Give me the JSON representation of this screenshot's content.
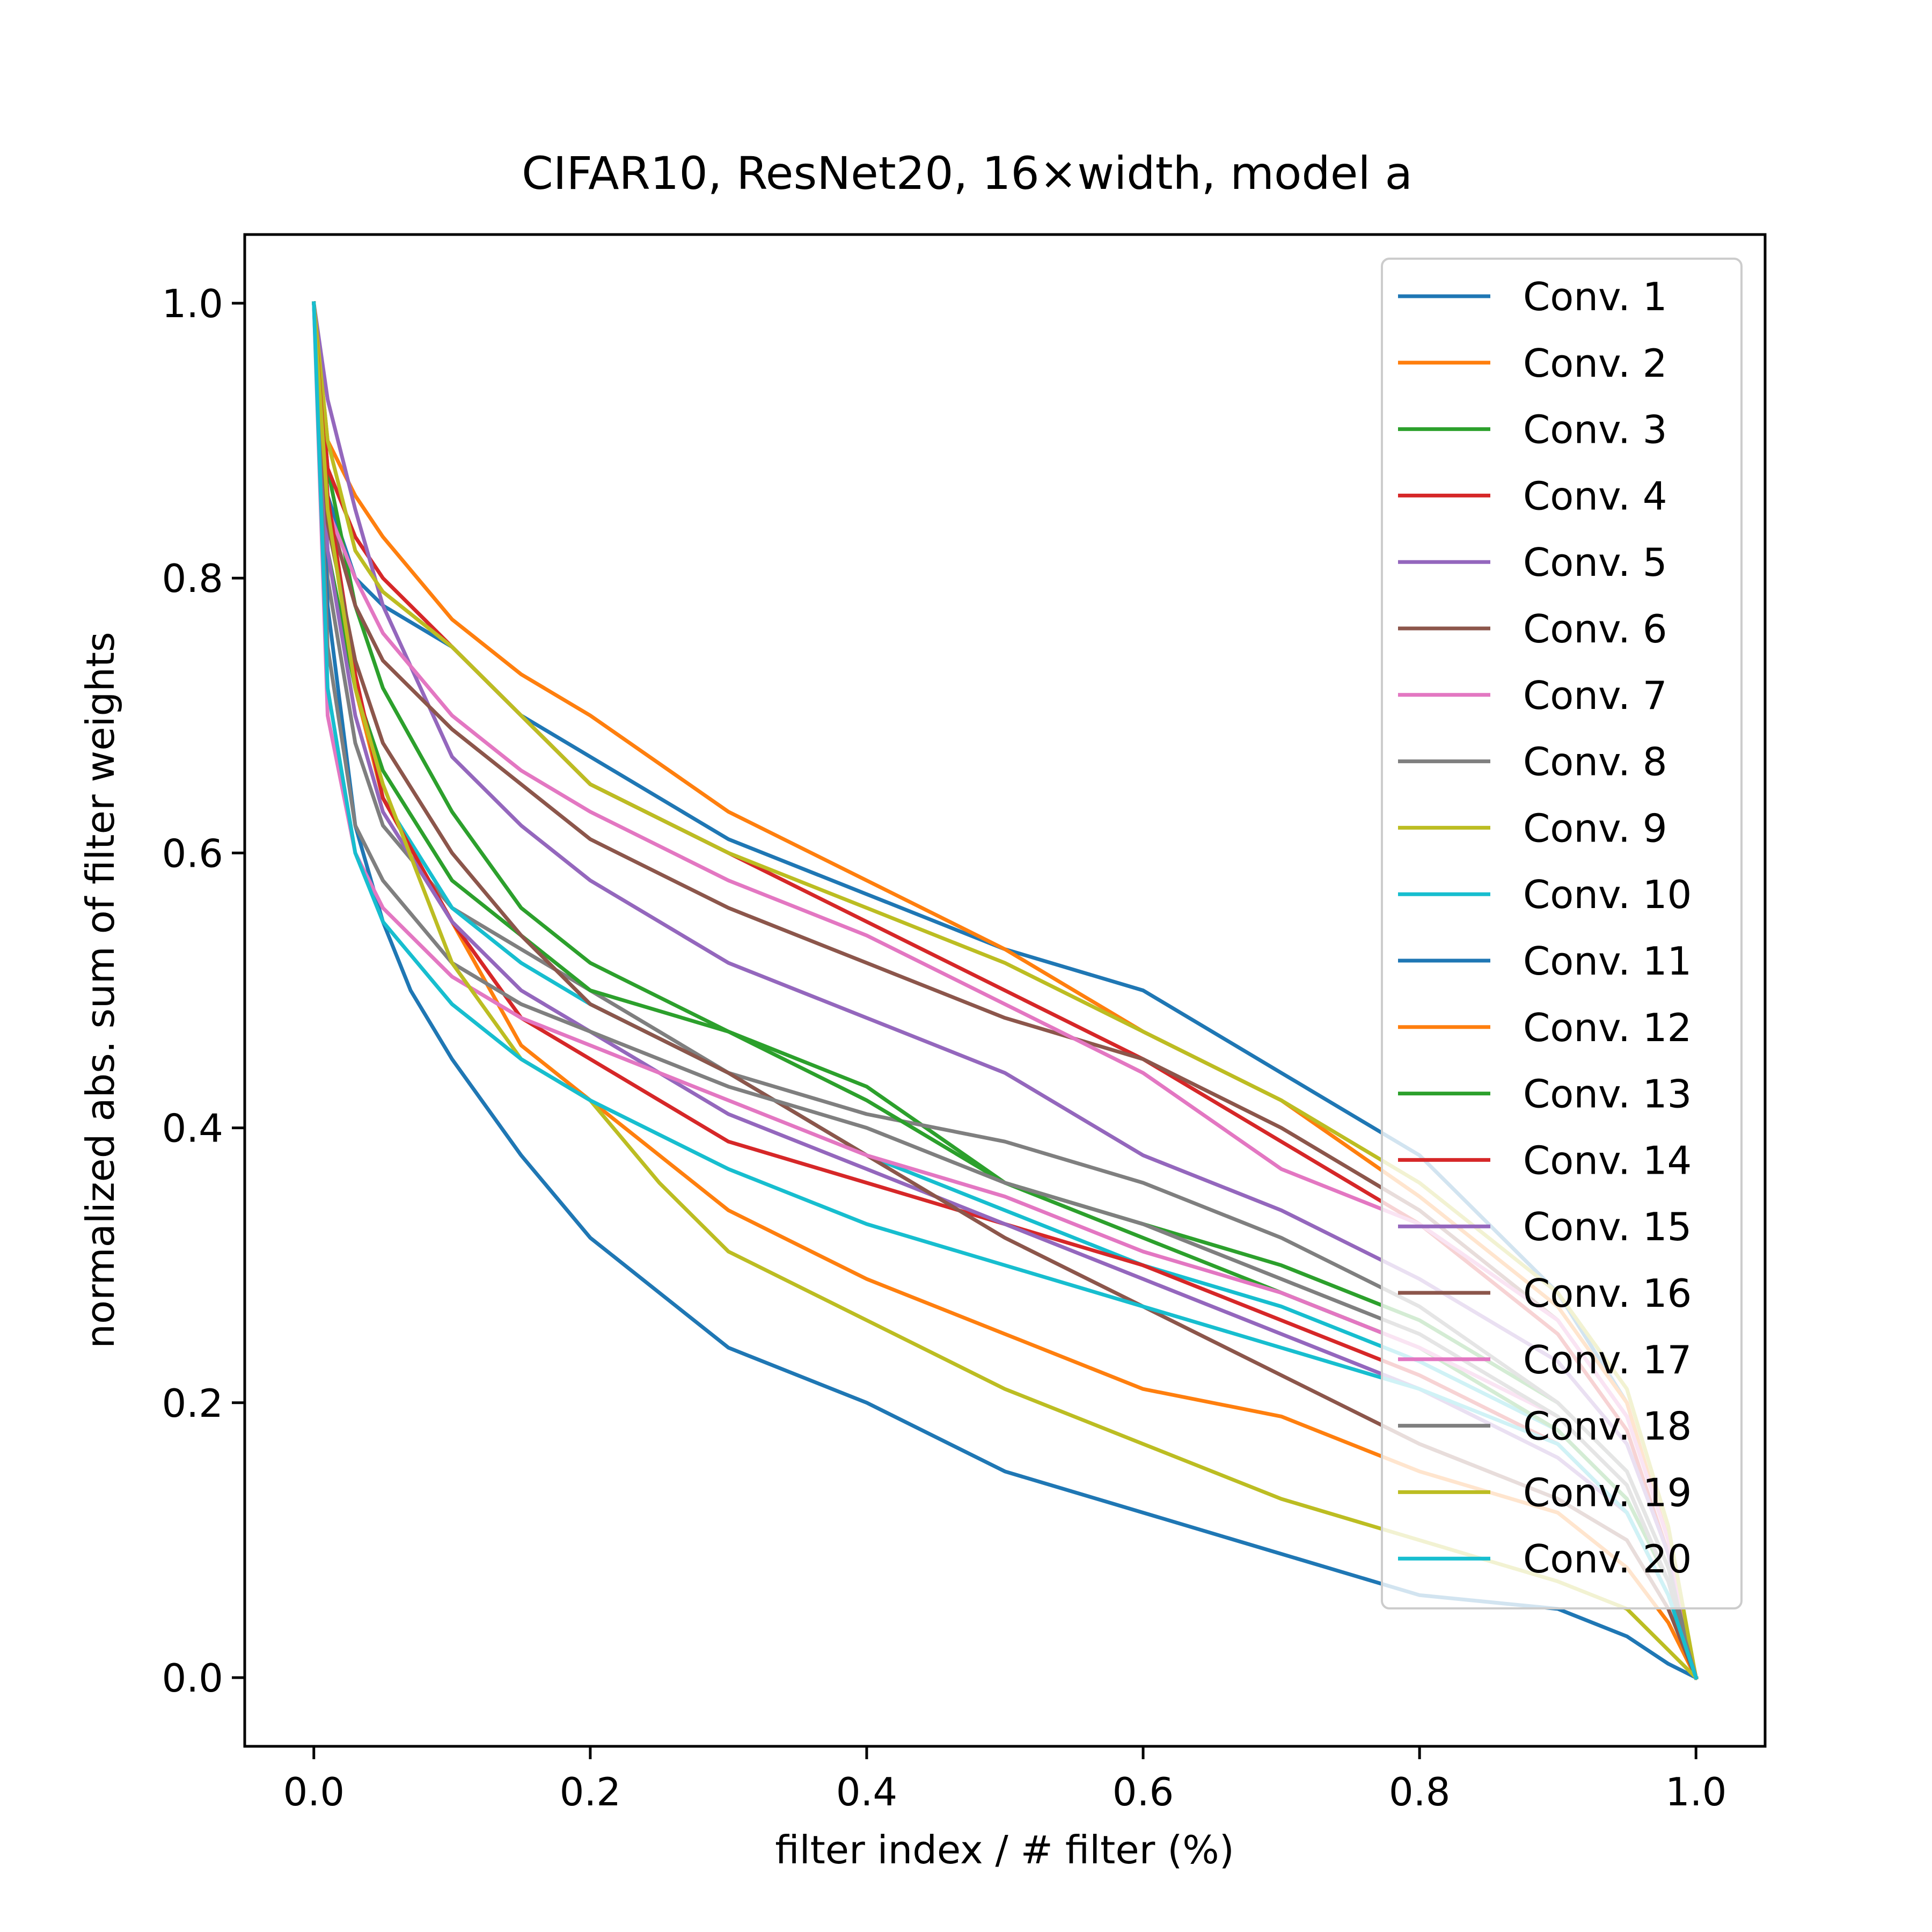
{
  "chart_data": {
    "type": "line",
    "title": "CIFAR10, ResNet20, 16×width, model a",
    "xlabel": "filter index / # filter (%)",
    "ylabel": "normalized abs. sum of filter weights",
    "xlim": [
      -0.05,
      1.05
    ],
    "ylim": [
      -0.05,
      1.05
    ],
    "xticks": [
      0.0,
      0.2,
      0.4,
      0.6,
      0.8,
      1.0
    ],
    "xtick_labels": [
      "0.0",
      "0.2",
      "0.4",
      "0.6",
      "0.8",
      "1.0"
    ],
    "yticks": [
      0.0,
      0.2,
      0.4,
      0.6,
      0.8,
      1.0
    ],
    "ytick_labels": [
      "0.0",
      "0.2",
      "0.4",
      "0.6",
      "0.8",
      "1.0"
    ],
    "grid": false,
    "legend_position": "upper right",
    "series": [
      {
        "name": "Conv. 1",
        "color": "#1f77b4",
        "x": [
          0,
          0.01,
          0.03,
          0.05,
          0.1,
          0.15,
          0.2,
          0.3,
          0.4,
          0.5,
          0.6,
          0.7,
          0.8,
          0.9,
          0.95,
          0.98,
          1.0
        ],
        "y": [
          1.0,
          0.86,
          0.8,
          0.78,
          0.75,
          0.7,
          0.67,
          0.61,
          0.57,
          0.53,
          0.5,
          0.44,
          0.38,
          0.28,
          0.2,
          0.1,
          0.0
        ]
      },
      {
        "name": "Conv. 2",
        "color": "#ff7f0e",
        "x": [
          0,
          0.01,
          0.03,
          0.05,
          0.1,
          0.15,
          0.2,
          0.3,
          0.4,
          0.5,
          0.6,
          0.7,
          0.8,
          0.9,
          0.95,
          0.98,
          1.0
        ],
        "y": [
          1.0,
          0.9,
          0.86,
          0.83,
          0.77,
          0.73,
          0.7,
          0.63,
          0.58,
          0.53,
          0.47,
          0.42,
          0.35,
          0.27,
          0.2,
          0.1,
          0.0
        ]
      },
      {
        "name": "Conv. 3",
        "color": "#2ca02c",
        "x": [
          0,
          0.01,
          0.03,
          0.05,
          0.1,
          0.15,
          0.2,
          0.3,
          0.4,
          0.5,
          0.6,
          0.7,
          0.8,
          0.9,
          0.95,
          0.98,
          1.0
        ],
        "y": [
          1.0,
          0.88,
          0.78,
          0.72,
          0.63,
          0.56,
          0.52,
          0.47,
          0.43,
          0.36,
          0.33,
          0.3,
          0.26,
          0.2,
          0.15,
          0.08,
          0.0
        ]
      },
      {
        "name": "Conv. 4",
        "color": "#d62728",
        "x": [
          0,
          0.01,
          0.03,
          0.05,
          0.1,
          0.15,
          0.2,
          0.3,
          0.4,
          0.5,
          0.6,
          0.7,
          0.8,
          0.9,
          0.95,
          0.98,
          1.0
        ],
        "y": [
          1.0,
          0.88,
          0.83,
          0.8,
          0.75,
          0.7,
          0.65,
          0.6,
          0.55,
          0.5,
          0.45,
          0.39,
          0.33,
          0.25,
          0.18,
          0.09,
          0.0
        ]
      },
      {
        "name": "Conv. 5",
        "color": "#9467bd",
        "x": [
          0,
          0.01,
          0.03,
          0.05,
          0.1,
          0.15,
          0.2,
          0.3,
          0.4,
          0.5,
          0.6,
          0.7,
          0.8,
          0.9,
          0.95,
          0.98,
          1.0
        ],
        "y": [
          1.0,
          0.93,
          0.85,
          0.78,
          0.67,
          0.62,
          0.58,
          0.52,
          0.48,
          0.44,
          0.38,
          0.34,
          0.29,
          0.23,
          0.17,
          0.09,
          0.0
        ]
      },
      {
        "name": "Conv. 6",
        "color": "#8c564b",
        "x": [
          0,
          0.01,
          0.03,
          0.05,
          0.1,
          0.15,
          0.2,
          0.3,
          0.4,
          0.5,
          0.6,
          0.7,
          0.8,
          0.9,
          0.95,
          0.98,
          1.0
        ],
        "y": [
          1.0,
          0.85,
          0.78,
          0.74,
          0.69,
          0.65,
          0.61,
          0.56,
          0.52,
          0.48,
          0.45,
          0.4,
          0.34,
          0.26,
          0.19,
          0.1,
          0.0
        ]
      },
      {
        "name": "Conv. 7",
        "color": "#e377c2",
        "x": [
          0,
          0.01,
          0.03,
          0.05,
          0.1,
          0.15,
          0.2,
          0.3,
          0.4,
          0.5,
          0.6,
          0.7,
          0.8,
          0.9,
          0.95,
          0.98,
          1.0
        ],
        "y": [
          1.0,
          0.85,
          0.8,
          0.76,
          0.7,
          0.66,
          0.63,
          0.58,
          0.54,
          0.49,
          0.44,
          0.37,
          0.33,
          0.26,
          0.19,
          0.1,
          0.0
        ]
      },
      {
        "name": "Conv. 8",
        "color": "#7f7f7f",
        "x": [
          0,
          0.01,
          0.03,
          0.05,
          0.1,
          0.15,
          0.2,
          0.3,
          0.4,
          0.5,
          0.6,
          0.7,
          0.8,
          0.9,
          0.95,
          0.98,
          1.0
        ],
        "y": [
          1.0,
          0.8,
          0.68,
          0.62,
          0.56,
          0.53,
          0.5,
          0.44,
          0.41,
          0.39,
          0.36,
          0.32,
          0.27,
          0.2,
          0.15,
          0.08,
          0.0
        ]
      },
      {
        "name": "Conv. 9",
        "color": "#bcbd22",
        "x": [
          0,
          0.01,
          0.03,
          0.05,
          0.1,
          0.15,
          0.2,
          0.3,
          0.4,
          0.5,
          0.6,
          0.7,
          0.8,
          0.9,
          0.95,
          0.98,
          1.0
        ],
        "y": [
          1.0,
          0.9,
          0.82,
          0.79,
          0.75,
          0.7,
          0.65,
          0.6,
          0.56,
          0.52,
          0.47,
          0.42,
          0.36,
          0.28,
          0.21,
          0.11,
          0.0
        ]
      },
      {
        "name": "Conv. 10",
        "color": "#17becf",
        "x": [
          0,
          0.01,
          0.03,
          0.05,
          0.1,
          0.15,
          0.2,
          0.3,
          0.4,
          0.5,
          0.6,
          0.7,
          0.8,
          0.9,
          0.95,
          0.98,
          1.0
        ],
        "y": [
          1.0,
          0.85,
          0.72,
          0.64,
          0.56,
          0.52,
          0.49,
          0.44,
          0.38,
          0.34,
          0.3,
          0.27,
          0.23,
          0.18,
          0.13,
          0.07,
          0.0
        ]
      },
      {
        "name": "Conv. 11",
        "color": "#1f77b4",
        "x": [
          0,
          0.01,
          0.03,
          0.05,
          0.07,
          0.1,
          0.15,
          0.2,
          0.3,
          0.4,
          0.5,
          0.6,
          0.7,
          0.8,
          0.9,
          0.95,
          0.98,
          1.0
        ],
        "y": [
          1.0,
          0.78,
          0.62,
          0.55,
          0.5,
          0.45,
          0.38,
          0.32,
          0.24,
          0.2,
          0.15,
          0.12,
          0.09,
          0.06,
          0.05,
          0.03,
          0.01,
          0.0
        ]
      },
      {
        "name": "Conv. 12",
        "color": "#ff7f0e",
        "x": [
          0,
          0.01,
          0.03,
          0.05,
          0.1,
          0.15,
          0.2,
          0.25,
          0.3,
          0.4,
          0.5,
          0.6,
          0.7,
          0.8,
          0.9,
          0.95,
          0.98,
          1.0
        ],
        "y": [
          1.0,
          0.85,
          0.72,
          0.64,
          0.55,
          0.46,
          0.42,
          0.38,
          0.34,
          0.29,
          0.25,
          0.21,
          0.19,
          0.15,
          0.12,
          0.08,
          0.04,
          0.0
        ]
      },
      {
        "name": "Conv. 13",
        "color": "#2ca02c",
        "x": [
          0,
          0.01,
          0.03,
          0.05,
          0.1,
          0.15,
          0.2,
          0.3,
          0.4,
          0.5,
          0.6,
          0.7,
          0.8,
          0.9,
          0.95,
          0.98,
          1.0
        ],
        "y": [
          1.0,
          0.82,
          0.72,
          0.66,
          0.58,
          0.54,
          0.5,
          0.47,
          0.42,
          0.36,
          0.32,
          0.28,
          0.24,
          0.18,
          0.13,
          0.07,
          0.0
        ]
      },
      {
        "name": "Conv. 14",
        "color": "#d62728",
        "x": [
          0,
          0.01,
          0.03,
          0.05,
          0.1,
          0.15,
          0.2,
          0.3,
          0.4,
          0.5,
          0.6,
          0.7,
          0.8,
          0.9,
          0.95,
          0.98,
          1.0
        ],
        "y": [
          1.0,
          0.86,
          0.73,
          0.64,
          0.55,
          0.48,
          0.45,
          0.39,
          0.36,
          0.33,
          0.3,
          0.26,
          0.22,
          0.17,
          0.12,
          0.06,
          0.0
        ]
      },
      {
        "name": "Conv. 15",
        "color": "#9467bd",
        "x": [
          0,
          0.01,
          0.03,
          0.05,
          0.1,
          0.15,
          0.2,
          0.3,
          0.4,
          0.5,
          0.6,
          0.7,
          0.8,
          0.9,
          0.95,
          0.98,
          1.0
        ],
        "y": [
          1.0,
          0.82,
          0.7,
          0.63,
          0.55,
          0.5,
          0.47,
          0.41,
          0.37,
          0.33,
          0.29,
          0.25,
          0.21,
          0.16,
          0.12,
          0.06,
          0.0
        ]
      },
      {
        "name": "Conv. 16",
        "color": "#8c564b",
        "x": [
          0,
          0.01,
          0.03,
          0.05,
          0.1,
          0.15,
          0.2,
          0.3,
          0.4,
          0.5,
          0.6,
          0.7,
          0.8,
          0.9,
          0.95,
          0.98,
          1.0
        ],
        "y": [
          1.0,
          0.84,
          0.74,
          0.68,
          0.6,
          0.54,
          0.49,
          0.44,
          0.38,
          0.32,
          0.27,
          0.22,
          0.17,
          0.13,
          0.1,
          0.05,
          0.0
        ]
      },
      {
        "name": "Conv. 17",
        "color": "#e377c2",
        "x": [
          0,
          0.01,
          0.03,
          0.05,
          0.1,
          0.15,
          0.2,
          0.3,
          0.4,
          0.5,
          0.6,
          0.7,
          0.8,
          0.9,
          0.95,
          0.98,
          1.0
        ],
        "y": [
          1.0,
          0.7,
          0.6,
          0.56,
          0.51,
          0.48,
          0.46,
          0.42,
          0.38,
          0.35,
          0.31,
          0.28,
          0.24,
          0.19,
          0.14,
          0.07,
          0.0
        ]
      },
      {
        "name": "Conv. 18",
        "color": "#7f7f7f",
        "x": [
          0,
          0.01,
          0.03,
          0.05,
          0.1,
          0.15,
          0.2,
          0.3,
          0.4,
          0.5,
          0.6,
          0.7,
          0.8,
          0.9,
          0.95,
          0.98,
          1.0
        ],
        "y": [
          1.0,
          0.75,
          0.62,
          0.58,
          0.52,
          0.49,
          0.47,
          0.43,
          0.4,
          0.36,
          0.33,
          0.29,
          0.25,
          0.19,
          0.14,
          0.07,
          0.0
        ]
      },
      {
        "name": "Conv. 19",
        "color": "#bcbd22",
        "x": [
          0,
          0.01,
          0.03,
          0.05,
          0.1,
          0.15,
          0.2,
          0.25,
          0.3,
          0.4,
          0.5,
          0.6,
          0.7,
          0.8,
          0.9,
          0.95,
          0.98,
          1.0
        ],
        "y": [
          1.0,
          0.85,
          0.72,
          0.65,
          0.52,
          0.45,
          0.42,
          0.36,
          0.31,
          0.26,
          0.21,
          0.17,
          0.13,
          0.1,
          0.07,
          0.05,
          0.02,
          0.0
        ]
      },
      {
        "name": "Conv. 20",
        "color": "#17becf",
        "x": [
          0,
          0.01,
          0.03,
          0.05,
          0.1,
          0.15,
          0.2,
          0.3,
          0.4,
          0.5,
          0.6,
          0.7,
          0.8,
          0.9,
          0.95,
          0.98,
          1.0
        ],
        "y": [
          1.0,
          0.72,
          0.6,
          0.55,
          0.49,
          0.45,
          0.42,
          0.37,
          0.33,
          0.3,
          0.27,
          0.24,
          0.21,
          0.17,
          0.12,
          0.06,
          0.0
        ]
      }
    ]
  }
}
